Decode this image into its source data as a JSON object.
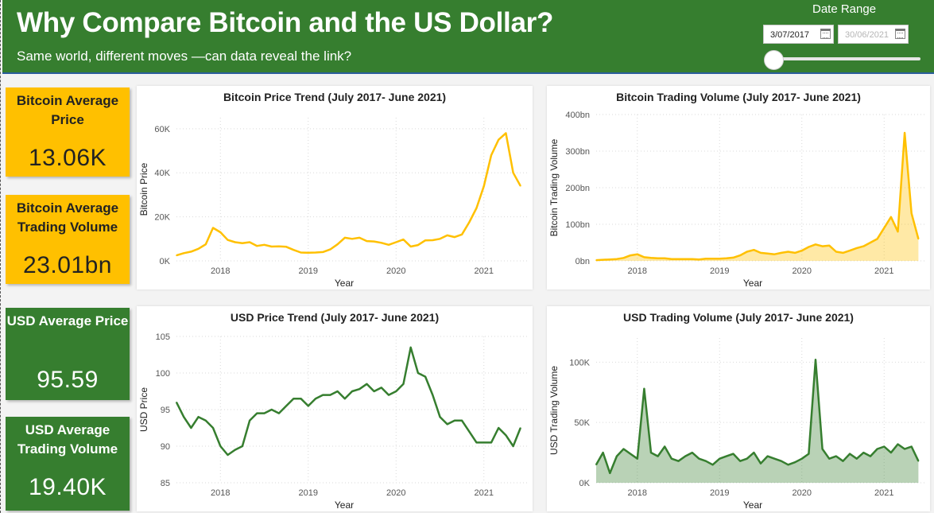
{
  "header": {
    "title": "Why Compare Bitcoin and the US Dollar?",
    "subtitle": "Same world, different moves —can data reveal the link?",
    "accent_color": "#367e2f"
  },
  "date_range": {
    "label": "Date Range",
    "start": "3/07/2017",
    "end": "30/06/2021",
    "slider_position": 0
  },
  "kpis": {
    "btc_price": {
      "label": "Bitcoin Average Price",
      "value": "13.06K",
      "color": "#ffc000"
    },
    "btc_volume": {
      "label": "Bitcoin Average Trading Volume",
      "value": "23.01bn",
      "color": "#ffc000"
    },
    "usd_price": {
      "label": "USD Average Price",
      "value": "95.59",
      "color": "#367e2f"
    },
    "usd_volume": {
      "label": "USD Average Trading Volume",
      "value": "19.40K",
      "color": "#367e2f"
    }
  },
  "chart_data": [
    {
      "id": "btc_price",
      "type": "line",
      "title": "Bitcoin Price Trend (July 2017- June 2021)",
      "xlabel": "Year",
      "ylabel": "Bitcoin Price",
      "color": "#ffc000",
      "x_ticks": [
        "2018",
        "2019",
        "2020",
        "2021"
      ],
      "y_ticks": [
        "0K",
        "20K",
        "40K",
        "60K"
      ],
      "ylim": [
        0,
        65000
      ],
      "grid": true,
      "x": [
        "2017-07",
        "2017-08",
        "2017-09",
        "2017-10",
        "2017-11",
        "2017-12",
        "2018-01",
        "2018-02",
        "2018-03",
        "2018-04",
        "2018-05",
        "2018-06",
        "2018-07",
        "2018-08",
        "2018-09",
        "2018-10",
        "2018-11",
        "2018-12",
        "2019-01",
        "2019-02",
        "2019-03",
        "2019-04",
        "2019-05",
        "2019-06",
        "2019-07",
        "2019-08",
        "2019-09",
        "2019-10",
        "2019-11",
        "2019-12",
        "2020-01",
        "2020-02",
        "2020-03",
        "2020-04",
        "2020-05",
        "2020-06",
        "2020-07",
        "2020-08",
        "2020-09",
        "2020-10",
        "2020-11",
        "2020-12",
        "2021-01",
        "2021-02",
        "2021-03",
        "2021-04",
        "2021-05",
        "2021-06"
      ],
      "values": [
        2500,
        3500,
        4200,
        5500,
        7500,
        15000,
        13000,
        9500,
        8500,
        8000,
        8500,
        6800,
        7300,
        6500,
        6600,
        6400,
        5000,
        3800,
        3700,
        3800,
        4000,
        5200,
        7500,
        10500,
        10000,
        10500,
        9000,
        8800,
        8200,
        7300,
        8500,
        9700,
        6500,
        7200,
        9300,
        9400,
        10000,
        11600,
        10800,
        12000,
        17500,
        24000,
        34000,
        48000,
        55000,
        58000,
        40000,
        34000
      ]
    },
    {
      "id": "btc_volume",
      "type": "area",
      "title": "Bitcoin Trading Volume (July 2017- June 2021)",
      "xlabel": "Year",
      "ylabel": "Bitcoin Trading Volume",
      "color": "#ffc000",
      "x_ticks": [
        "2018",
        "2019",
        "2020",
        "2021"
      ],
      "y_ticks": [
        "0bn",
        "100bn",
        "200bn",
        "300bn",
        "400bn"
      ],
      "ylim": [
        0,
        400
      ],
      "grid": true,
      "x": [
        "2017-07",
        "2017-08",
        "2017-09",
        "2017-10",
        "2017-11",
        "2017-12",
        "2018-01",
        "2018-02",
        "2018-03",
        "2018-04",
        "2018-05",
        "2018-06",
        "2018-07",
        "2018-08",
        "2018-09",
        "2018-10",
        "2018-11",
        "2018-12",
        "2019-01",
        "2019-02",
        "2019-03",
        "2019-04",
        "2019-05",
        "2019-06",
        "2019-07",
        "2019-08",
        "2019-09",
        "2019-10",
        "2019-11",
        "2019-12",
        "2020-01",
        "2020-02",
        "2020-03",
        "2020-04",
        "2020-05",
        "2020-06",
        "2020-07",
        "2020-08",
        "2020-09",
        "2020-10",
        "2020-11",
        "2020-12",
        "2021-01",
        "2021-02",
        "2021-03",
        "2021-04",
        "2021-05",
        "2021-06"
      ],
      "values": [
        2,
        3,
        4,
        5,
        8,
        15,
        18,
        10,
        8,
        7,
        7,
        5,
        5,
        5,
        5,
        4,
        6,
        6,
        6,
        7,
        9,
        15,
        25,
        30,
        22,
        20,
        18,
        22,
        25,
        22,
        28,
        38,
        45,
        40,
        42,
        25,
        22,
        28,
        35,
        40,
        50,
        60,
        90,
        120,
        80,
        350,
        130,
        60
      ]
    },
    {
      "id": "usd_price",
      "type": "line",
      "title": "USD Price Trend (July 2017- June 2021)",
      "xlabel": "Year",
      "ylabel": "USD Price",
      "color": "#367e2f",
      "x_ticks": [
        "2018",
        "2019",
        "2020",
        "2021"
      ],
      "y_ticks": [
        "85",
        "90",
        "95",
        "100",
        "105"
      ],
      "ylim": [
        85,
        105
      ],
      "grid": true,
      "x": [
        "2017-07",
        "2017-08",
        "2017-09",
        "2017-10",
        "2017-11",
        "2017-12",
        "2018-01",
        "2018-02",
        "2018-03",
        "2018-04",
        "2018-05",
        "2018-06",
        "2018-07",
        "2018-08",
        "2018-09",
        "2018-10",
        "2018-11",
        "2018-12",
        "2019-01",
        "2019-02",
        "2019-03",
        "2019-04",
        "2019-05",
        "2019-06",
        "2019-07",
        "2019-08",
        "2019-09",
        "2019-10",
        "2019-11",
        "2019-12",
        "2020-01",
        "2020-02",
        "2020-03",
        "2020-04",
        "2020-05",
        "2020-06",
        "2020-07",
        "2020-08",
        "2020-09",
        "2020-10",
        "2020-11",
        "2020-12",
        "2021-01",
        "2021-02",
        "2021-03",
        "2021-04",
        "2021-05",
        "2021-06"
      ],
      "values": [
        96,
        94,
        92.5,
        94,
        93.5,
        92.5,
        90,
        88.8,
        89.5,
        90,
        93.5,
        94.5,
        94.5,
        95,
        94.5,
        95.5,
        96.5,
        96.5,
        95.5,
        96.5,
        97,
        97,
        97.5,
        96.5,
        97.5,
        97.8,
        98.5,
        97.5,
        98,
        97,
        97.5,
        98.5,
        103.5,
        100,
        99.5,
        97,
        94,
        93,
        93.5,
        93.5,
        92,
        90.5,
        90.5,
        90.5,
        92.5,
        91.5,
        90,
        92.5
      ]
    },
    {
      "id": "usd_volume",
      "type": "area",
      "title": "USD Trading Volume (July 2017- June 2021)",
      "xlabel": "Year",
      "ylabel": "USD Trading Volume",
      "color": "#367e2f",
      "x_ticks": [
        "2018",
        "2019",
        "2020",
        "2021"
      ],
      "y_ticks": [
        "0K",
        "50K",
        "100K"
      ],
      "ylim": [
        0,
        120000
      ],
      "grid": true,
      "x": [
        "2017-07",
        "2017-08",
        "2017-09",
        "2017-10",
        "2017-11",
        "2017-12",
        "2018-01",
        "2018-02",
        "2018-03",
        "2018-04",
        "2018-05",
        "2018-06",
        "2018-07",
        "2018-08",
        "2018-09",
        "2018-10",
        "2018-11",
        "2018-12",
        "2019-01",
        "2019-02",
        "2019-03",
        "2019-04",
        "2019-05",
        "2019-06",
        "2019-07",
        "2019-08",
        "2019-09",
        "2019-10",
        "2019-11",
        "2019-12",
        "2020-01",
        "2020-02",
        "2020-03",
        "2020-04",
        "2020-05",
        "2020-06",
        "2020-07",
        "2020-08",
        "2020-09",
        "2020-10",
        "2020-11",
        "2020-12",
        "2021-01",
        "2021-02",
        "2021-03",
        "2021-04",
        "2021-05",
        "2021-06"
      ],
      "values": [
        15000,
        25000,
        8000,
        22000,
        28000,
        24000,
        20000,
        78000,
        25000,
        22000,
        30000,
        20000,
        18000,
        22000,
        25000,
        20000,
        18000,
        15000,
        20000,
        22000,
        24000,
        18000,
        20000,
        25000,
        16000,
        22000,
        20000,
        18000,
        15000,
        17000,
        20000,
        24000,
        102000,
        28000,
        20000,
        22000,
        18000,
        24000,
        20000,
        25000,
        22000,
        28000,
        30000,
        25000,
        32000,
        28000,
        30000,
        18000
      ]
    }
  ]
}
